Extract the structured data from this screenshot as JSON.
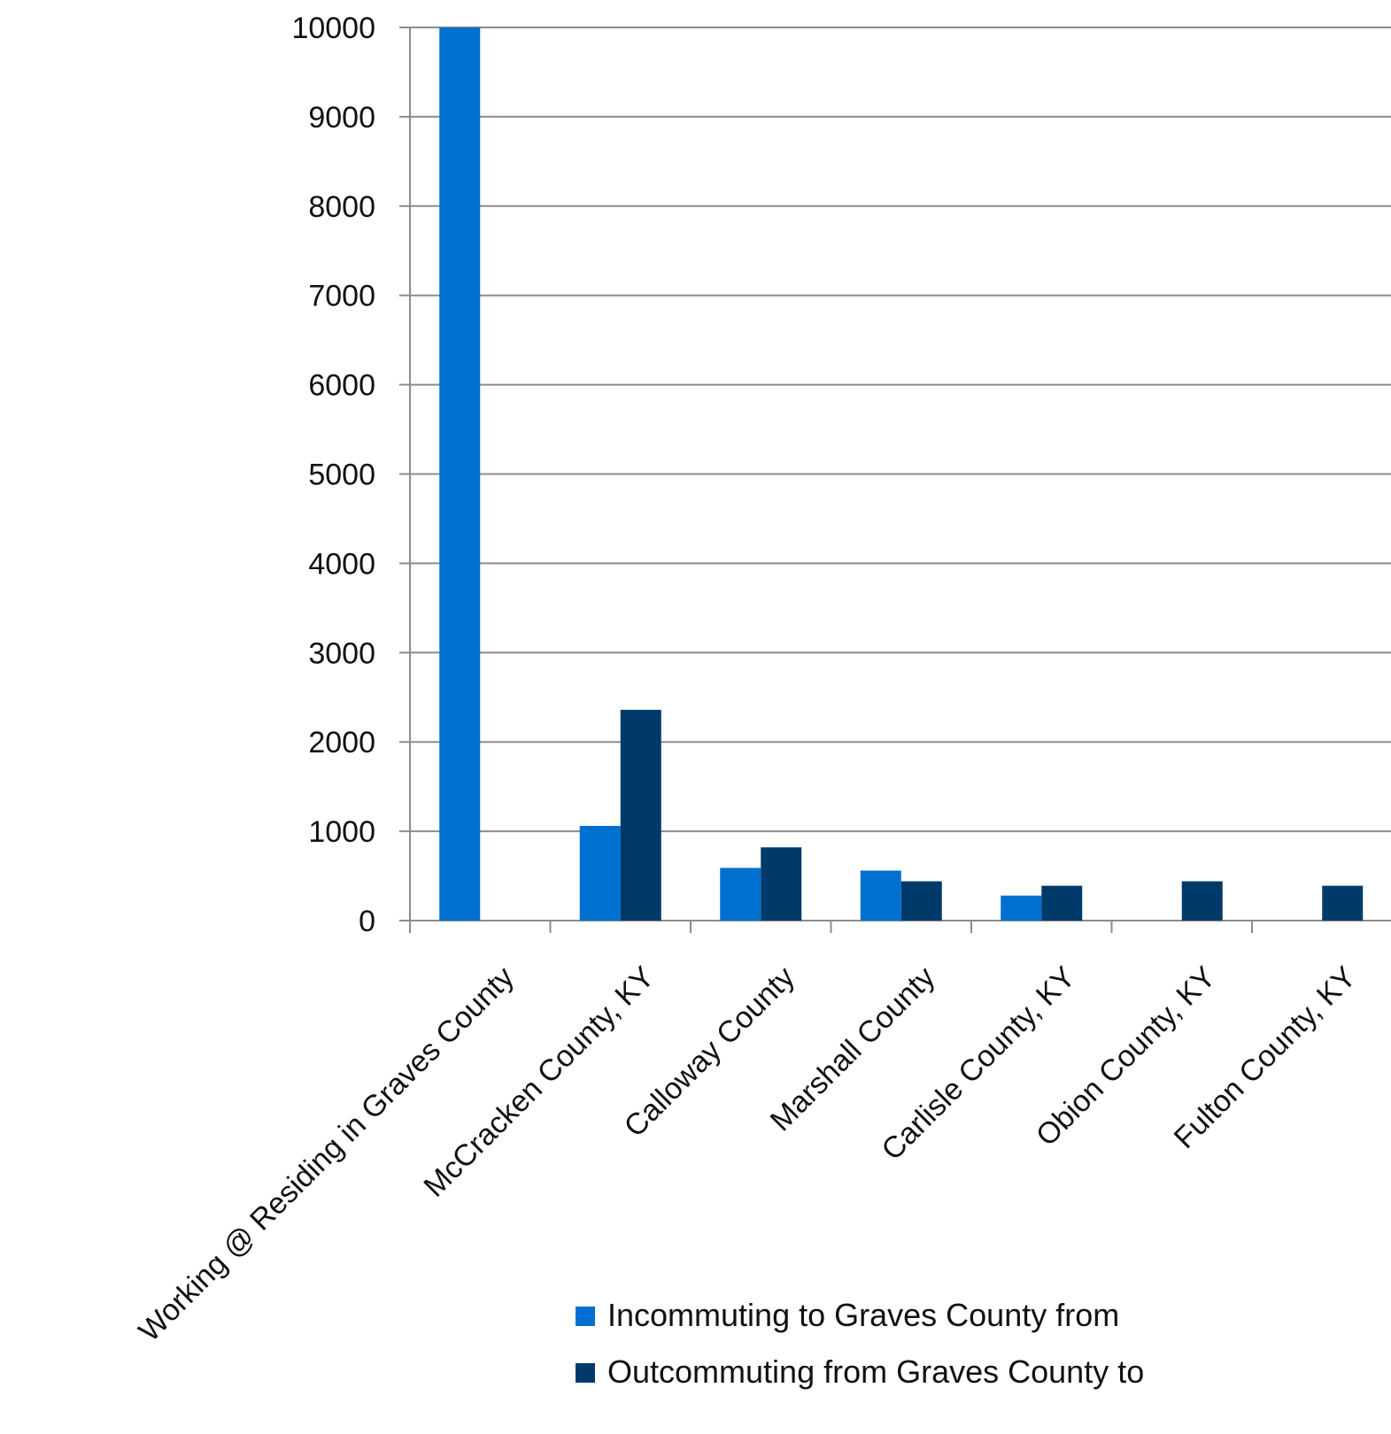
{
  "chart_data": {
    "type": "bar",
    "categories": [
      "Working @ Residing in Graves County",
      "McCracken County, KY",
      "Calloway County",
      "Marshall County",
      "Carlisle County, KY",
      "Obion County, KY",
      "Fulton County, KY"
    ],
    "series": [
      {
        "name": "Incommuting to Graves County from",
        "color": "#0070D0",
        "values": [
          10000,
          1060,
          590,
          560,
          280,
          0,
          0
        ]
      },
      {
        "name": "Outcommuting from Graves County to",
        "color": "#003A6B",
        "values": [
          0,
          2360,
          820,
          440,
          390,
          440,
          390
        ]
      }
    ],
    "title": "",
    "xlabel": "",
    "ylabel": "",
    "ylim": [
      0,
      10000
    ],
    "yticks": [
      0,
      1000,
      2000,
      3000,
      4000,
      5000,
      6000,
      7000,
      8000,
      9000,
      10000
    ],
    "grid": true,
    "legend_position": "bottom-center"
  }
}
